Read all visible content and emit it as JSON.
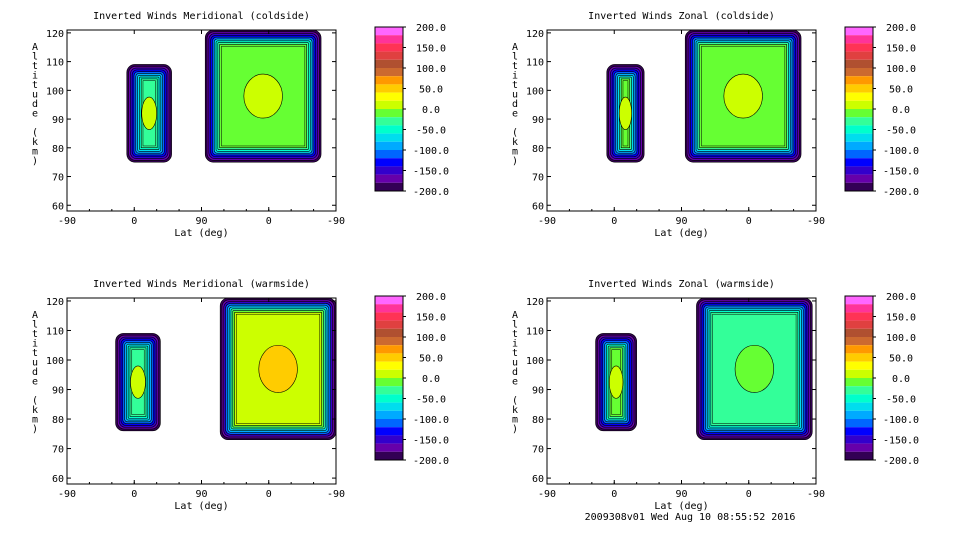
{
  "footer": "2009308v01 Wed Aug 10 08:55:52 2016",
  "colorbar": {
    "labels": [
      "200.0",
      "150.0",
      "100.0",
      "50.0",
      "0.0",
      "-50.0",
      "-100.0",
      "-150.0",
      "-200.0"
    ],
    "colors": [
      "#ff66ff",
      "#ff3399",
      "#ff3355",
      "#e04040",
      "#b05030",
      "#cc6a30",
      "#ff9900",
      "#ffcc00",
      "#ffff00",
      "#ccff00",
      "#66ff33",
      "#33ff99",
      "#00ffcc",
      "#00ddee",
      "#00aaff",
      "#0066ff",
      "#0000ff",
      "#3300cc",
      "#6600aa",
      "#330055"
    ]
  },
  "chart_data": [
    {
      "type": "heatmap",
      "title": "Inverted Winds Meridional (coldside)",
      "xlabel": "Lat (deg)",
      "ylabel": "Altitude (km)",
      "x_ticks": [
        "-90",
        "0",
        "90",
        "0",
        "-90"
      ],
      "y_ticks": [
        "60",
        "70",
        "80",
        "90",
        "100",
        "110",
        "120"
      ],
      "ylim": [
        58,
        121
      ],
      "zlim": [
        -200,
        200
      ],
      "blocks": [
        {
          "lat_range": [
            -10,
            50
          ],
          "alt_range": [
            75,
            109
          ],
          "interior_value": -20
        },
        {
          "lat_range": [
            95,
            250
          ],
          "alt_range": [
            75,
            121
          ],
          "interior_value": -5
        }
      ]
    },
    {
      "type": "heatmap",
      "title": "Inverted Winds Zonal (coldside)",
      "xlabel": "Lat (deg)",
      "ylabel": "Altitude (km)",
      "x_ticks": [
        "-90",
        "0",
        "90",
        "0",
        "-90"
      ],
      "y_ticks": [
        "60",
        "70",
        "80",
        "90",
        "100",
        "110",
        "120"
      ],
      "ylim": [
        58,
        121
      ],
      "zlim": [
        -200,
        200
      ],
      "blocks": [
        {
          "lat_range": [
            -10,
            40
          ],
          "alt_range": [
            75,
            109
          ],
          "interior_value": -15
        },
        {
          "lat_range": [
            95,
            250
          ],
          "alt_range": [
            75,
            121
          ],
          "interior_value": -15
        }
      ]
    },
    {
      "type": "heatmap",
      "title": "Inverted Winds Meridional (warmside)",
      "xlabel": "Lat (deg)",
      "ylabel": "Altitude (km)",
      "x_ticks": [
        "-90",
        "0",
        "90",
        "0",
        "-90"
      ],
      "y_ticks": [
        "60",
        "70",
        "80",
        "90",
        "100",
        "110",
        "120"
      ],
      "ylim": [
        58,
        121
      ],
      "zlim": [
        -200,
        200
      ],
      "blocks": [
        {
          "lat_range": [
            -25,
            35
          ],
          "alt_range": [
            76,
            109
          ],
          "interior_value": -20
        },
        {
          "lat_range": [
            115,
            270
          ],
          "alt_range": [
            73,
            121
          ],
          "interior_value": 20
        }
      ]
    },
    {
      "type": "heatmap",
      "title": "Inverted Winds Zonal (warmside)",
      "xlabel": "Lat (deg)",
      "ylabel": "Altitude (km)",
      "x_ticks": [
        "-90",
        "0",
        "90",
        "0",
        "-90"
      ],
      "y_ticks": [
        "60",
        "70",
        "80",
        "90",
        "100",
        "110",
        "120"
      ],
      "ylim": [
        58,
        121
      ],
      "zlim": [
        -200,
        200
      ],
      "blocks": [
        {
          "lat_range": [
            -25,
            30
          ],
          "alt_range": [
            76,
            109
          ],
          "interior_value": -10
        },
        {
          "lat_range": [
            110,
            265
          ],
          "alt_range": [
            73,
            121
          ],
          "interior_value": -25
        }
      ]
    }
  ]
}
